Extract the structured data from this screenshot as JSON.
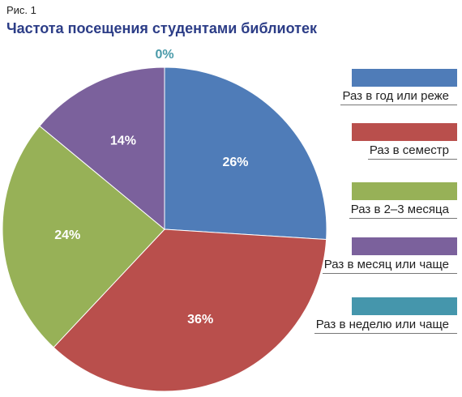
{
  "figure_label": "Рис. 1",
  "colors": {
    "title": "#2c3d87",
    "slice_text": "#ffffff",
    "zero_label": "#4a9aa9"
  },
  "chart_data": {
    "type": "pie",
    "title": "Частота посещения студентами библиотек",
    "start_angle_deg": 0,
    "direction": "clockwise",
    "slices": [
      {
        "label": "Раз в год или реже",
        "value": 26,
        "display": "26%",
        "color": "#4f7cb8"
      },
      {
        "label": "Раз в семестр",
        "value": 36,
        "display": "36%",
        "color": "#b94f4c"
      },
      {
        "label": "Раз в 2–3 месяца",
        "value": 24,
        "display": "24%",
        "color": "#97b157"
      },
      {
        "label": "Раз в месяц или чаще",
        "value": 14,
        "display": "14%",
        "color": "#7b619c"
      },
      {
        "label": "Раз в неделю или чаще",
        "value": 0,
        "display": "0%",
        "color": "#4596ac"
      }
    ],
    "legend_position": "right"
  }
}
